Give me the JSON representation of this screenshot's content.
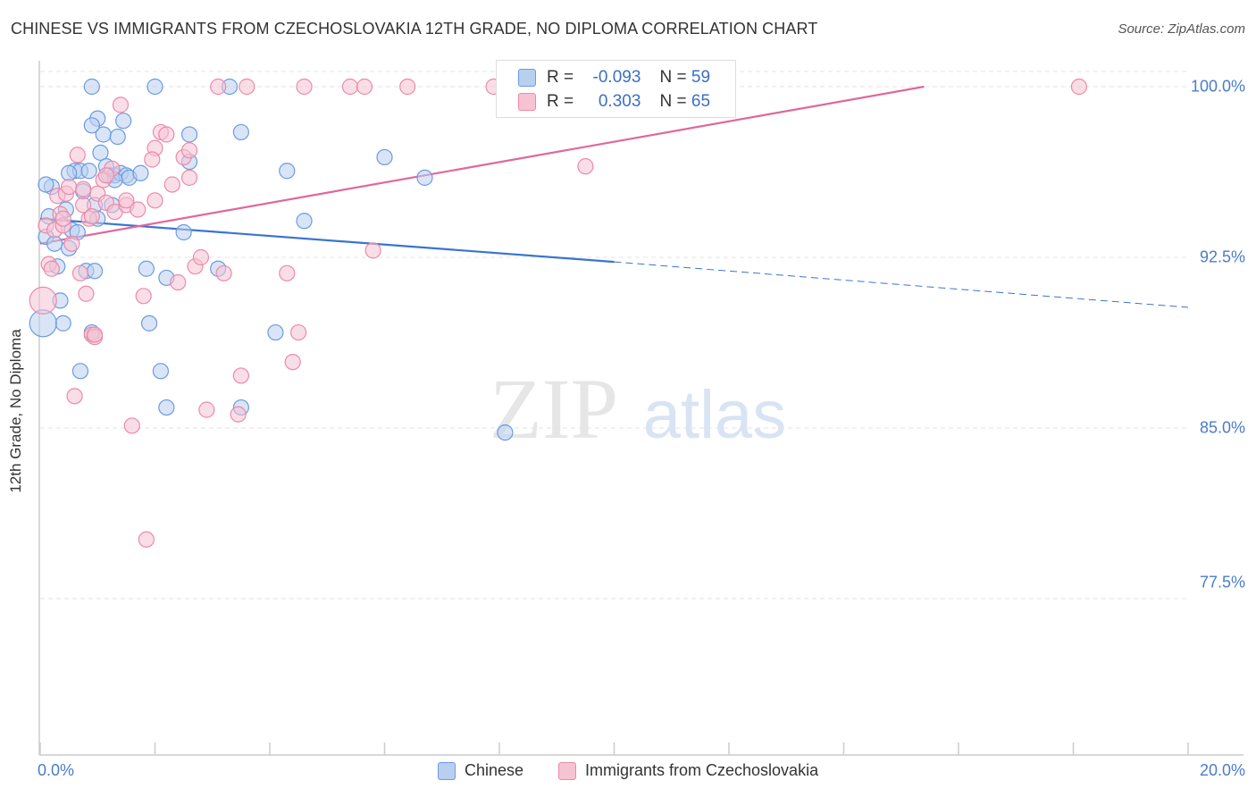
{
  "title": "CHINESE VS IMMIGRANTS FROM CZECHOSLOVAKIA 12TH GRADE, NO DIPLOMA CORRELATION CHART",
  "source": "Source: ZipAtlas.com",
  "watermark": {
    "part1": "ZIP",
    "part2": "atlas"
  },
  "colors": {
    "chinese": "#6b9be0",
    "chinese_fill": "#b9cff0",
    "czech": "#ec8aa8",
    "czech_fill": "#f6c3d3",
    "blue_line": "#3a74d1",
    "pink_line": "#e0679a",
    "tick_text": "#4a7cc9"
  },
  "legend": {
    "r_label": "R =",
    "n_label": "N =",
    "series": [
      {
        "r": "-0.093",
        "n": "59"
      },
      {
        "r": "0.303",
        "n": "65"
      }
    ]
  },
  "chart_data": {
    "type": "scatter",
    "title": "CHINESE VS IMMIGRANTS FROM CZECHOSLOVAKIA 12TH GRADE, NO DIPLOMA CORRELATION CHART",
    "xlabel": "",
    "ylabel": "12th Grade, No Diploma",
    "xlim": [
      0,
      20
    ],
    "ylim": [
      70,
      101.8
    ],
    "x_tick_labels": [
      "0.0%",
      "20.0%"
    ],
    "y_ticks": [
      77.5,
      85.0,
      92.5,
      100.0
    ],
    "y_tick_labels": [
      "77.5%",
      "85.0%",
      "92.5%",
      "100.0%"
    ],
    "series": [
      {
        "name": "Chinese",
        "points": [
          [
            0.1,
            93.4
          ],
          [
            0.15,
            94.3
          ],
          [
            0.2,
            95.6
          ],
          [
            0.25,
            93.1
          ],
          [
            0.3,
            92.1
          ],
          [
            0.35,
            90.6
          ],
          [
            0.4,
            89.6
          ],
          [
            0.45,
            94.6
          ],
          [
            0.5,
            92.9
          ],
          [
            0.55,
            93.7
          ],
          [
            0.6,
            96.3
          ],
          [
            0.65,
            93.6
          ],
          [
            0.7,
            96.3
          ],
          [
            0.75,
            95.4
          ],
          [
            0.8,
            91.9
          ],
          [
            0.85,
            96.3
          ],
          [
            0.9,
            89.2
          ],
          [
            0.95,
            94.8
          ],
          [
            1.0,
            94.2
          ],
          [
            1.05,
            97.1
          ],
          [
            1.1,
            97.9
          ],
          [
            1.15,
            96.5
          ],
          [
            1.2,
            96.1
          ],
          [
            1.25,
            94.8
          ],
          [
            1.3,
            96.1
          ],
          [
            1.35,
            97.8
          ],
          [
            1.4,
            96.2
          ],
          [
            1.45,
            98.5
          ],
          [
            1.5,
            96.1
          ],
          [
            1.55,
            96.0
          ],
          [
            1.0,
            98.6
          ],
          [
            0.9,
            98.3
          ],
          [
            0.7,
            87.5
          ],
          [
            1.9,
            89.6
          ],
          [
            1.85,
            92.0
          ],
          [
            2.2,
            91.6
          ],
          [
            2.2,
            85.9
          ],
          [
            2.1,
            87.5
          ],
          [
            2.5,
            93.6
          ],
          [
            2.6,
            97.9
          ],
          [
            3.1,
            92.0
          ],
          [
            3.5,
            85.9
          ],
          [
            3.5,
            98.0
          ],
          [
            4.1,
            89.2
          ],
          [
            4.3,
            96.3
          ],
          [
            4.6,
            94.1
          ],
          [
            6.0,
            96.9
          ],
          [
            6.7,
            96.0
          ],
          [
            8.1,
            84.8
          ],
          [
            0.05,
            89.6
          ],
          [
            0.1,
            95.7
          ],
          [
            1.3,
            95.9
          ],
          [
            2.6,
            96.7
          ],
          [
            0.95,
            91.9
          ],
          [
            0.9,
            100.0
          ],
          [
            2.0,
            100.0
          ],
          [
            3.3,
            100.0
          ],
          [
            0.5,
            96.2
          ],
          [
            1.75,
            96.2
          ]
        ]
      },
      {
        "name": "Immigrants from Czechoslovakia",
        "points": [
          [
            0.05,
            90.6
          ],
          [
            0.1,
            93.9
          ],
          [
            0.15,
            92.2
          ],
          [
            0.2,
            92.0
          ],
          [
            0.25,
            93.7
          ],
          [
            0.3,
            95.2
          ],
          [
            0.35,
            94.4
          ],
          [
            0.4,
            93.9
          ],
          [
            0.45,
            95.3
          ],
          [
            0.5,
            95.6
          ],
          [
            0.55,
            93.1
          ],
          [
            0.6,
            86.4
          ],
          [
            0.65,
            97.0
          ],
          [
            0.7,
            91.8
          ],
          [
            0.75,
            94.8
          ],
          [
            0.8,
            90.9
          ],
          [
            0.85,
            94.2
          ],
          [
            0.9,
            89.1
          ],
          [
            0.95,
            89.0
          ],
          [
            1.0,
            95.3
          ],
          [
            1.1,
            95.9
          ],
          [
            1.15,
            94.9
          ],
          [
            1.25,
            96.4
          ],
          [
            1.3,
            94.5
          ],
          [
            1.4,
            99.2
          ],
          [
            1.5,
            94.8
          ],
          [
            1.6,
            85.1
          ],
          [
            1.7,
            94.6
          ],
          [
            1.8,
            90.8
          ],
          [
            1.85,
            80.1
          ],
          [
            2.0,
            97.3
          ],
          [
            2.1,
            98.0
          ],
          [
            2.2,
            97.9
          ],
          [
            2.3,
            95.7
          ],
          [
            2.4,
            91.4
          ],
          [
            2.5,
            96.9
          ],
          [
            2.6,
            97.2
          ],
          [
            2.7,
            92.1
          ],
          [
            2.8,
            92.5
          ],
          [
            2.9,
            85.8
          ],
          [
            3.2,
            91.8
          ],
          [
            3.45,
            85.6
          ],
          [
            3.5,
            87.3
          ],
          [
            4.3,
            91.8
          ],
          [
            4.4,
            87.9
          ],
          [
            4.5,
            89.2
          ],
          [
            5.8,
            92.8
          ],
          [
            9.5,
            96.5
          ],
          [
            3.1,
            100.0
          ],
          [
            3.6,
            100.0
          ],
          [
            4.6,
            100.0
          ],
          [
            5.4,
            100.0
          ],
          [
            5.65,
            100.0
          ],
          [
            6.4,
            100.0
          ],
          [
            7.9,
            100.0
          ],
          [
            18.1,
            100.0
          ],
          [
            0.95,
            89.1
          ],
          [
            1.5,
            95.0
          ],
          [
            1.15,
            96.1
          ],
          [
            2.6,
            96.0
          ],
          [
            2.0,
            95.0
          ],
          [
            0.4,
            94.2
          ],
          [
            0.9,
            94.3
          ],
          [
            1.95,
            96.8
          ],
          [
            0.75,
            95.5
          ]
        ]
      }
    ],
    "trend_lines": [
      {
        "series": "Chinese",
        "solid": [
          [
            0.0,
            94.2
          ],
          [
            10.0,
            92.3
          ]
        ],
        "dashed": [
          [
            10.0,
            92.3
          ],
          [
            20.0,
            90.3
          ]
        ]
      },
      {
        "series": "Immigrants from Czechoslovakia",
        "solid": [
          [
            0.0,
            93.1
          ],
          [
            15.4,
            100.0
          ]
        ]
      }
    ],
    "legend_items": [
      "Chinese",
      "Immigrants from Czechoslovakia"
    ]
  }
}
